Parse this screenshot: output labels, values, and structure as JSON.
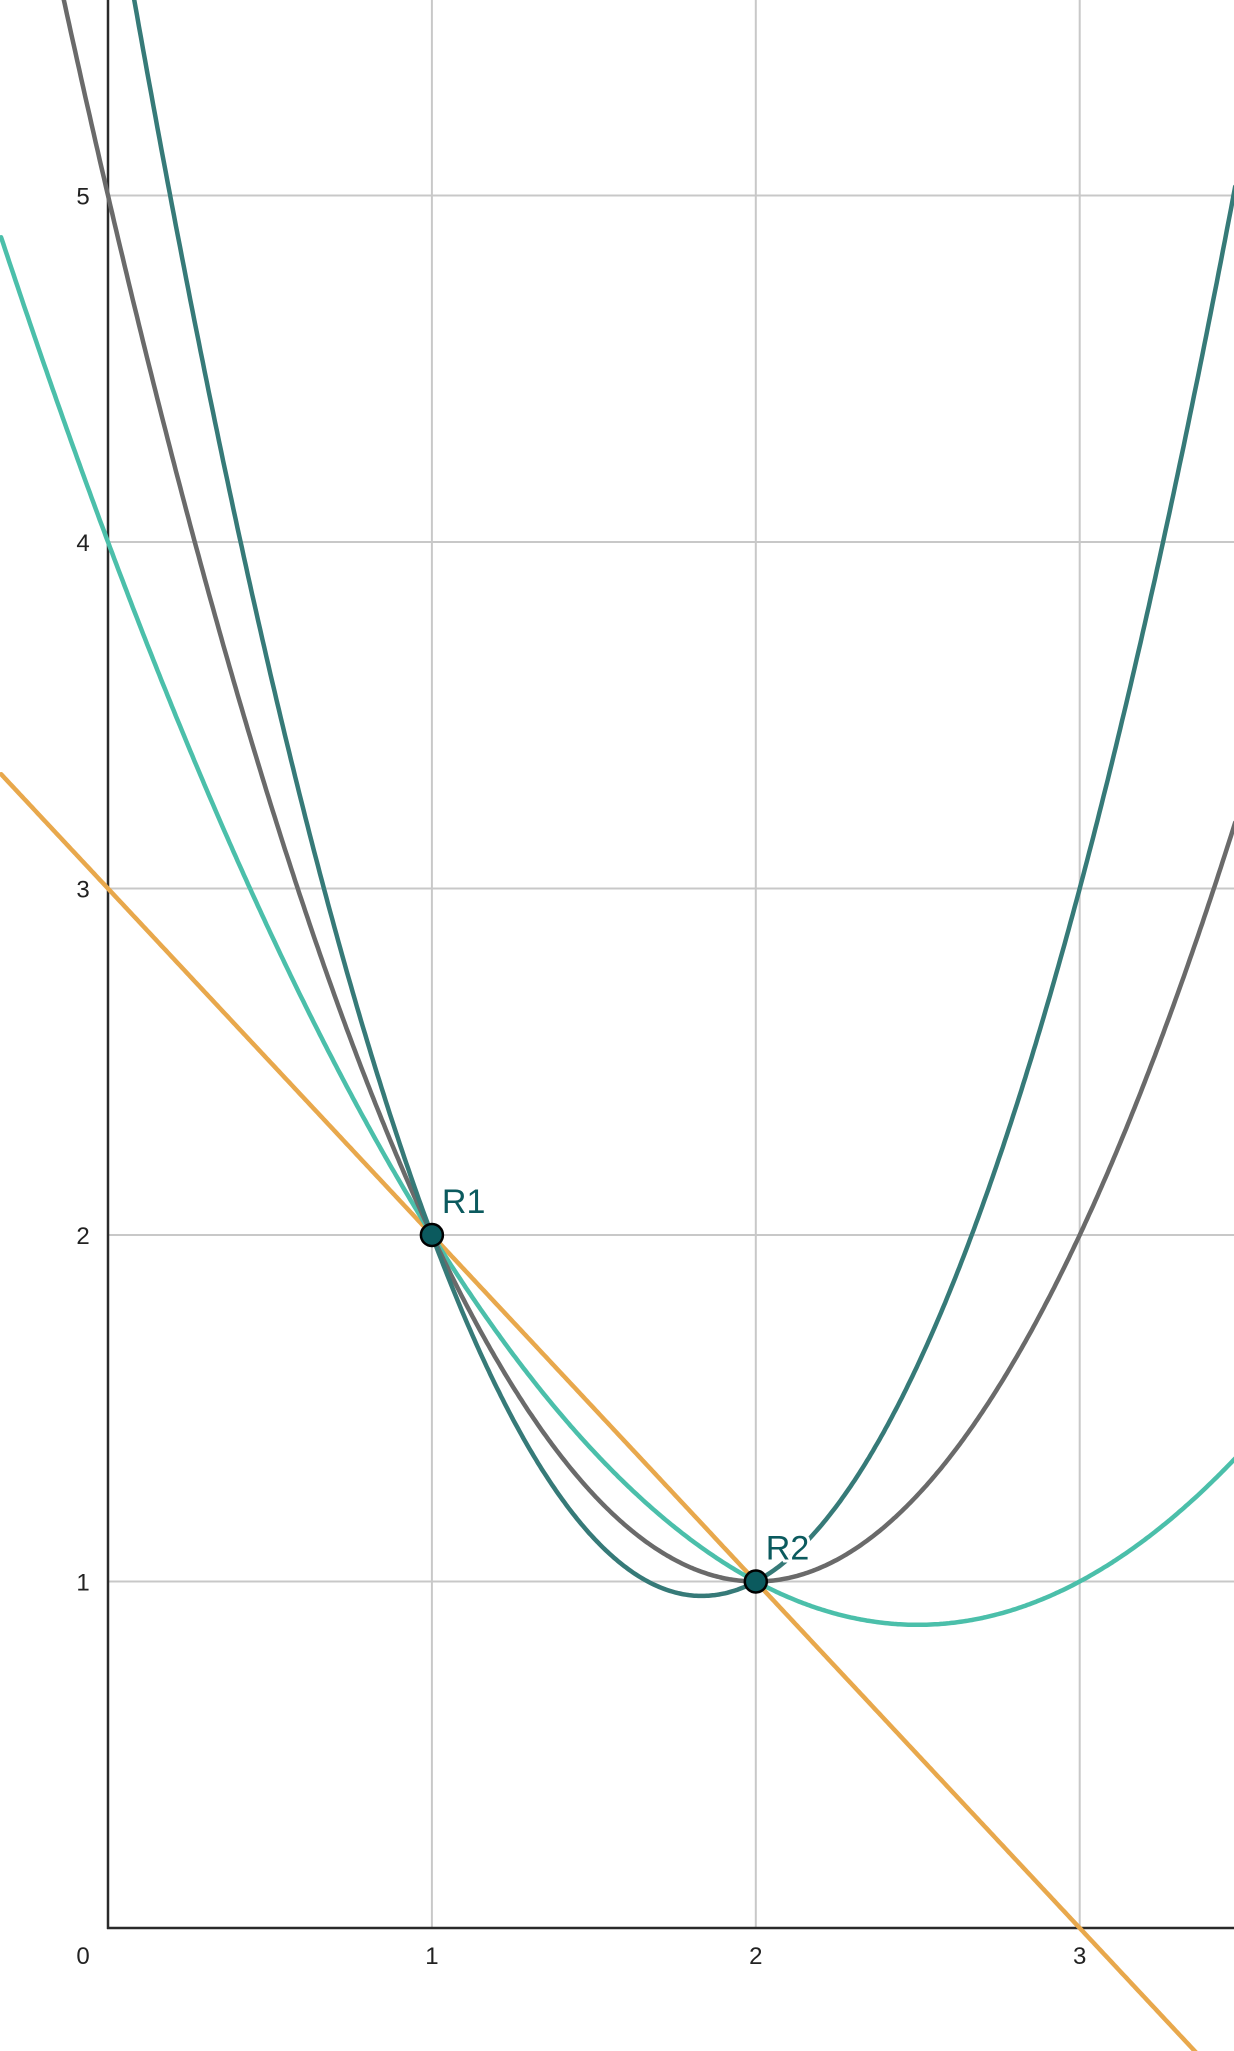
{
  "chart_data": {
    "type": "line",
    "xlim": [
      -0.33,
      3.48
    ],
    "ylim": [
      -0.36,
      5.56
    ],
    "grid": true,
    "x_ticks": [
      "0",
      "1",
      "2",
      "3"
    ],
    "y_ticks": [
      "1",
      "2",
      "3",
      "4",
      "5"
    ],
    "series": [
      {
        "formula": "y = 3 - x",
        "color": "#e8a84c",
        "coefficients": [
          0,
          -1,
          3
        ]
      },
      {
        "formula": "y = 0.5x^2 - 2.5x + 4",
        "color": "#4bbfaa",
        "coefficients": [
          0.5,
          -2.5,
          4
        ]
      },
      {
        "formula": "y = x^2 - 4x + 5",
        "color": "#6a6a6a",
        "coefficients": [
          1,
          -4,
          5
        ]
      },
      {
        "formula": "y = 1.5x^2 - 5.5x + 6",
        "color": "#367a78",
        "coefficients": [
          1.5,
          -5.5,
          6
        ]
      }
    ],
    "points": [
      {
        "label": "R1",
        "x": 1,
        "y": 2
      },
      {
        "label": "R2",
        "x": 2,
        "y": 1
      }
    ],
    "point_color": "#0b5a5e"
  }
}
